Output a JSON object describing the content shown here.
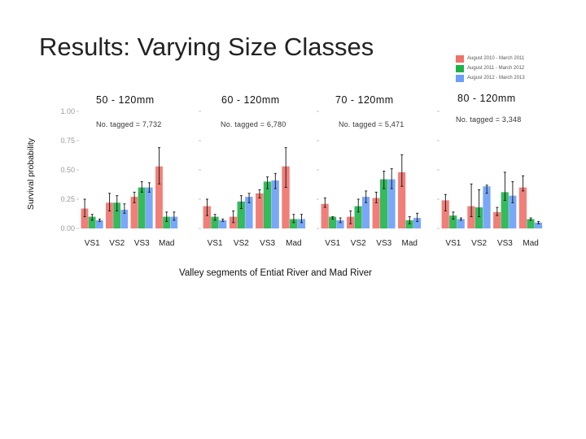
{
  "slide": {
    "title": "Results: Varying Size Classes"
  },
  "legend": {
    "items": [
      {
        "label": "August 2010 - March 2011",
        "color": "#F0716A"
      },
      {
        "label": "August 2011 - March 2012",
        "color": "#1FB24A"
      },
      {
        "label": "August 2012 - March 2013",
        "color": "#6C9EF8"
      }
    ]
  },
  "axes": {
    "ylabel": "Survival probability",
    "xlabel": "Valley segments of Entiat River and Mad River"
  },
  "chart_data": [
    {
      "type": "bar",
      "title": "50 - 120mm",
      "annotation": "No. tagged = 7,732",
      "categories": [
        "VS1",
        "VS2",
        "VS3",
        "Mad"
      ],
      "yticks": [
        "0.00",
        "0.25",
        "0.50",
        "0.75",
        "1.00"
      ],
      "ylim": [
        0,
        1
      ],
      "series": [
        {
          "name": "August 2010 - March 2011",
          "values": [
            0.17,
            0.22,
            0.27,
            0.53
          ],
          "lo": [
            0.1,
            0.15,
            0.22,
            0.38
          ],
          "hi": [
            0.25,
            0.3,
            0.31,
            0.69
          ]
        },
        {
          "name": "August 2011 - March 2012",
          "values": [
            0.1,
            0.22,
            0.35,
            0.1
          ],
          "lo": [
            0.07,
            0.15,
            0.31,
            0.06
          ],
          "hi": [
            0.12,
            0.28,
            0.4,
            0.14
          ]
        },
        {
          "name": "August 2012 - March 2013",
          "values": [
            0.07,
            0.16,
            0.35,
            0.1
          ],
          "lo": [
            0.06,
            0.13,
            0.31,
            0.07
          ],
          "hi": [
            0.08,
            0.21,
            0.39,
            0.14
          ]
        }
      ]
    },
    {
      "type": "bar",
      "title": "60 - 120mm",
      "annotation": "No. tagged = 6,780",
      "categories": [
        "VS1",
        "VS2",
        "VS3",
        "Mad"
      ],
      "ylim": [
        0,
        1
      ],
      "series": [
        {
          "name": "August 2010 - March 2011",
          "values": [
            0.19,
            0.1,
            0.3,
            0.53
          ],
          "lo": [
            0.11,
            0.05,
            0.26,
            0.35
          ],
          "hi": [
            0.25,
            0.15,
            0.33,
            0.69
          ]
        },
        {
          "name": "August 2011 - March 2012",
          "values": [
            0.1,
            0.23,
            0.4,
            0.08
          ],
          "lo": [
            0.07,
            0.17,
            0.34,
            0.05
          ],
          "hi": [
            0.12,
            0.28,
            0.44,
            0.12
          ]
        },
        {
          "name": "August 2012 - March 2013",
          "values": [
            0.07,
            0.27,
            0.41,
            0.08
          ],
          "lo": [
            0.06,
            0.22,
            0.34,
            0.05
          ],
          "hi": [
            0.08,
            0.3,
            0.47,
            0.12
          ]
        }
      ]
    },
    {
      "type": "bar",
      "title": "70 - 120mm",
      "annotation": "No. tagged = 5,471",
      "categories": [
        "VS1",
        "VS2",
        "VS3",
        "Mad"
      ],
      "ylim": [
        0,
        1
      ],
      "series": [
        {
          "name": "August 2010 - March 2011",
          "values": [
            0.21,
            0.1,
            0.26,
            0.48
          ],
          "lo": [
            0.18,
            0.04,
            0.22,
            0.36
          ],
          "hi": [
            0.26,
            0.15,
            0.31,
            0.63
          ]
        },
        {
          "name": "August 2011 - March 2012",
          "values": [
            0.1,
            0.19,
            0.42,
            0.07
          ],
          "lo": [
            0.08,
            0.14,
            0.34,
            0.04
          ],
          "hi": [
            0.1,
            0.25,
            0.49,
            0.1
          ]
        },
        {
          "name": "August 2012 - March 2013",
          "values": [
            0.07,
            0.27,
            0.42,
            0.09
          ],
          "lo": [
            0.05,
            0.22,
            0.34,
            0.06
          ],
          "hi": [
            0.09,
            0.32,
            0.51,
            0.13
          ]
        }
      ]
    },
    {
      "type": "bar",
      "title": "80 - 120mm",
      "annotation": "No. tagged = 3,348",
      "categories": [
        "VS1",
        "VS2",
        "VS3",
        "Mad"
      ],
      "ylim": [
        0,
        1
      ],
      "series": [
        {
          "name": "August 2010 - March 2011",
          "values": [
            0.24,
            0.19,
            0.14,
            0.35
          ],
          "lo": [
            0.15,
            0.1,
            0.11,
            0.32
          ],
          "hi": [
            0.29,
            0.38,
            0.18,
            0.45
          ]
        },
        {
          "name": "August 2011 - March 2012",
          "values": [
            0.11,
            0.18,
            0.31,
            0.08
          ],
          "lo": [
            0.08,
            0.1,
            0.24,
            0.07
          ],
          "hi": [
            0.14,
            0.33,
            0.48,
            0.09
          ]
        },
        {
          "name": "August 2012 - March 2013",
          "values": [
            0.08,
            0.36,
            0.28,
            0.05
          ],
          "lo": [
            0.07,
            0.3,
            0.22,
            0.04
          ],
          "hi": [
            0.09,
            0.37,
            0.4,
            0.06
          ]
        }
      ]
    }
  ]
}
